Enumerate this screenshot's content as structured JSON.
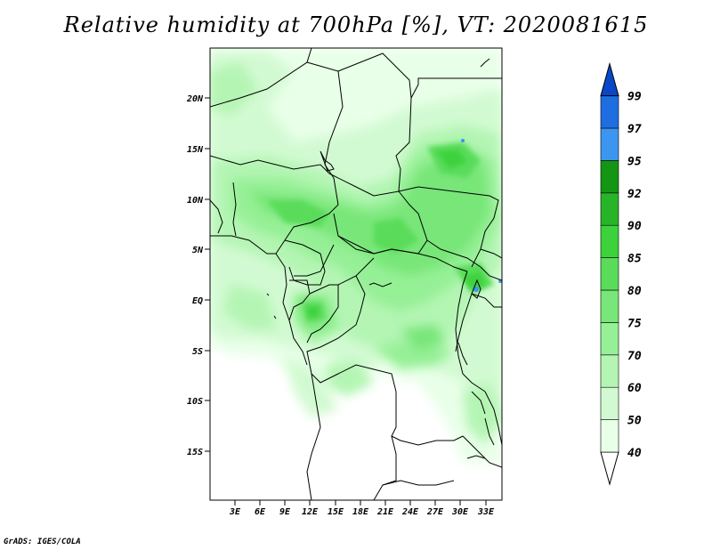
{
  "title": "Relative humidity at 700hPa [%], VT: 2020081615",
  "credit": "GrADS: IGES/COLA",
  "map": {
    "lat_ticks": [
      "20N",
      "15N",
      "10N",
      "5N",
      "EQ",
      "5S",
      "10S",
      "15S"
    ],
    "lon_ticks": [
      "3E",
      "6E",
      "9E",
      "12E",
      "15E",
      "18E",
      "21E",
      "24E",
      "27E",
      "30E",
      "33E"
    ]
  },
  "colorbar": {
    "levels": [
      "40",
      "50",
      "60",
      "70",
      "75",
      "80",
      "85",
      "90",
      "92",
      "95",
      "97",
      "99"
    ],
    "colors": [
      "#ffffff",
      "#e8ffe8",
      "#d2fad2",
      "#b4f5b4",
      "#96f096",
      "#78e678",
      "#5adc5a",
      "#3cd23c",
      "#28b428",
      "#149614",
      "#3c96f0",
      "#1e6ee1",
      "#0a46c8"
    ]
  }
}
